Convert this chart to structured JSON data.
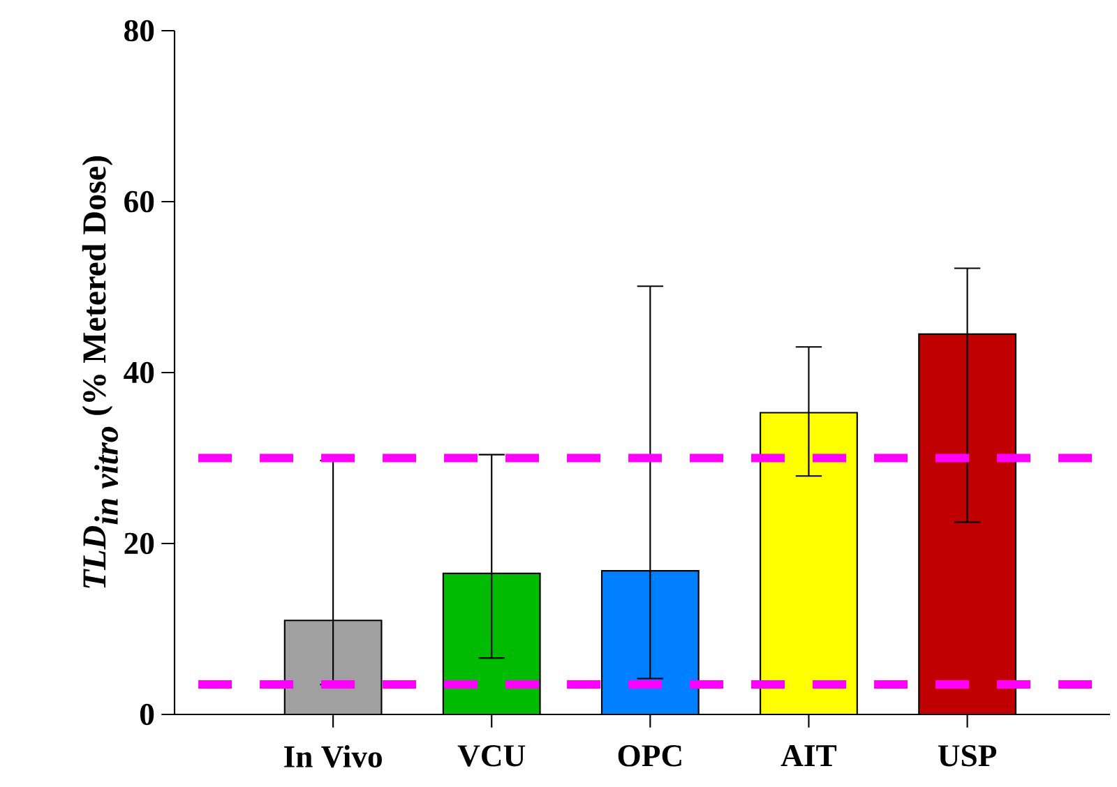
{
  "chart_data": {
    "type": "bar",
    "ylabel": "\\textbf{\\textit{TLD}}_{\\textbf{\\textit{in vitro}}}\\ \\textbf{(\\% Metered Dose)}",
    "categories": [
      "In Vivo",
      "VCU",
      "OPC",
      "AIT",
      "USP"
    ],
    "values": [
      11.0,
      16.5,
      16.8,
      35.3,
      44.5
    ],
    "colors": [
      "#a0a0a0",
      "#00bb00",
      "#0080ff",
      "#ffff00",
      "#c00000"
    ],
    "errors": [
      [
        3.5,
        29.7
      ],
      [
        6.6,
        30.4
      ],
      [
        4.2,
        50.1
      ],
      [
        27.9,
        43.0
      ],
      [
        22.5,
        52.2
      ]
    ],
    "ylim": [
      0,
      80
    ],
    "yticks": [
      0,
      20,
      40,
      60,
      80
    ],
    "ref_lines": [
      {
        "axis": "y",
        "value": 30,
        "color": "#ff00ff",
        "line_style": "dashed"
      },
      {
        "axis": "y",
        "value": 3.5,
        "color": "#ff00ff",
        "line_style": "dashed"
      }
    ],
    "grid": false
  }
}
